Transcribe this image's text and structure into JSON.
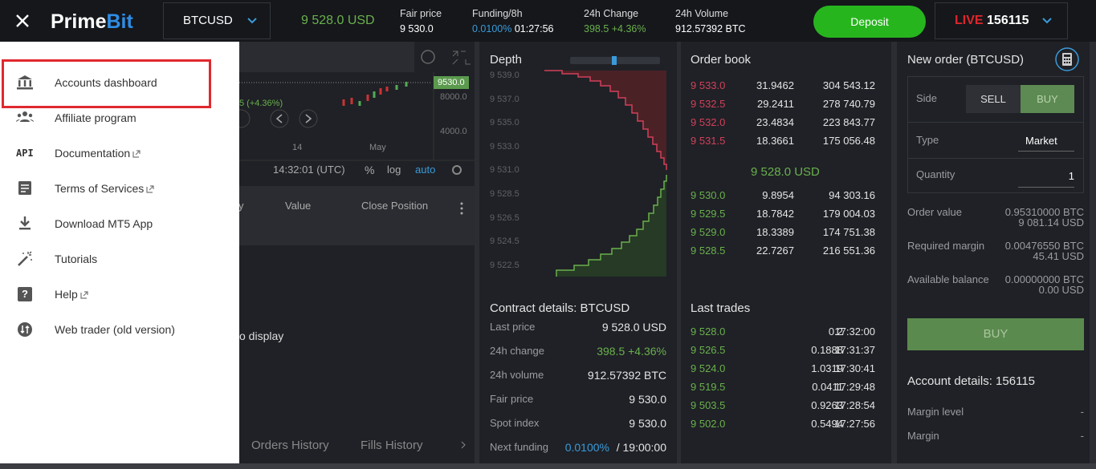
{
  "header": {
    "logo_prime": "Prime",
    "logo_bit": "Bit",
    "symbol": "BTCUSD",
    "last_price": "9 528.0 USD",
    "fair_price": {
      "label": "Fair price",
      "value": "9 530.0"
    },
    "funding": {
      "label": "Funding/8h",
      "rate": "0.0100%",
      "countdown": "01:27:56"
    },
    "change": {
      "label": "24h Change",
      "value": "398.5 +4.36%"
    },
    "volume": {
      "label": "24h Volume",
      "value": "912.57392 BTC"
    },
    "deposit": "Deposit",
    "mode": "LIVE",
    "account": "156115"
  },
  "menu": {
    "items": [
      {
        "icon": "bank",
        "label": "Accounts dashboard"
      },
      {
        "icon": "people",
        "label": "Affiliate program"
      },
      {
        "icon_text": "API",
        "label": "Documentation",
        "external": true
      },
      {
        "icon": "doc",
        "label": "Terms of Services",
        "external": true
      },
      {
        "icon": "download",
        "label": "Download MT5 App"
      },
      {
        "icon": "wand",
        "label": "Tutorials"
      },
      {
        "icon_text": "?",
        "label": "Help",
        "external": true
      },
      {
        "icon": "swap",
        "label": "Web trader (old version)"
      }
    ]
  },
  "chart_panel": {
    "price_marker": "9530.0",
    "price_axis": [
      "8000.0",
      "4000.0"
    ],
    "change_partial": "5 (+4.36%)",
    "date_axis": [
      "14",
      "May"
    ],
    "clock": "14:32:01 (UTC)",
    "scale_options": [
      "%",
      "log",
      "auto"
    ],
    "columns": [
      "y",
      "Value",
      "Close Position"
    ],
    "empty_partial": "o display",
    "tabs": [
      "Orders History",
      "Fills History"
    ]
  },
  "depth": {
    "title": "Depth",
    "price_axis": [
      "9 539.0",
      "9 537.0",
      "9 535.0",
      "9 533.0",
      "9 531.0",
      "9 528.5",
      "9 526.5",
      "9 524.5",
      "9 522.5"
    ]
  },
  "contract_details": {
    "title": "Contract details: BTCUSD",
    "rows": [
      {
        "label": "Last price",
        "value": "9 528.0 USD"
      },
      {
        "label": "24h change",
        "value": "398.5 +4.36%"
      },
      {
        "label": "24h volume",
        "value": "912.57392 BTC"
      },
      {
        "label": "Fair price",
        "value": "9 530.0"
      },
      {
        "label": "Spot index",
        "value": "9 530.0"
      }
    ],
    "next_funding": {
      "label": "Next funding",
      "rate": "0.0100%",
      "time": "/ 19:00:00"
    }
  },
  "order_book": {
    "title": "Order book",
    "asks": [
      [
        "9 533.0",
        "31.9462",
        "304 543.12"
      ],
      [
        "9 532.5",
        "29.2411",
        "278 740.79"
      ],
      [
        "9 532.0",
        "23.4834",
        "223 843.77"
      ],
      [
        "9 531.5",
        "18.3661",
        "175 056.48"
      ]
    ],
    "mid": "9 528.0 USD",
    "bids": [
      [
        "9 530.0",
        "9.8954",
        "94 303.16"
      ],
      [
        "9 529.5",
        "18.7842",
        "179 004.03"
      ],
      [
        "9 529.0",
        "18.3389",
        "174 751.38"
      ],
      [
        "9 528.5",
        "22.7267",
        "216 551.36"
      ]
    ]
  },
  "last_trades": {
    "title": "Last trades",
    "rows": [
      [
        "9 528.0",
        "0.2",
        "17:32:00"
      ],
      [
        "9 526.5",
        "0.1888",
        "17:31:37"
      ],
      [
        "9 524.0",
        "1.0319",
        "17:30:41"
      ],
      [
        "9 519.5",
        "0.0411",
        "17:29:48"
      ],
      [
        "9 503.5",
        "0.9263",
        "17:28:54"
      ],
      [
        "9 502.0",
        "0.5494",
        "17:27:56"
      ]
    ]
  },
  "new_order": {
    "title": "New order (BTCUSD)",
    "side_label": "Side",
    "sell": "SELL",
    "buy": "BUY",
    "type_label": "Type",
    "type_value": "Market",
    "quantity_label": "Quantity",
    "quantity_value": "1",
    "summary": [
      {
        "label": "Order value",
        "btc": "0.95310000 BTC",
        "usd": "9 081.14 USD"
      },
      {
        "label": "Required margin",
        "btc": "0.00476550 BTC",
        "usd": "45.41 USD"
      },
      {
        "label": "Available balance",
        "btc": "0.00000000 BTC",
        "usd": "0.00 USD"
      }
    ],
    "submit": "BUY"
  },
  "account_details": {
    "title": "Account details: 156115",
    "rows": [
      {
        "label": "Margin level",
        "value": "-"
      },
      {
        "label": "Margin",
        "value": "-"
      }
    ]
  }
}
